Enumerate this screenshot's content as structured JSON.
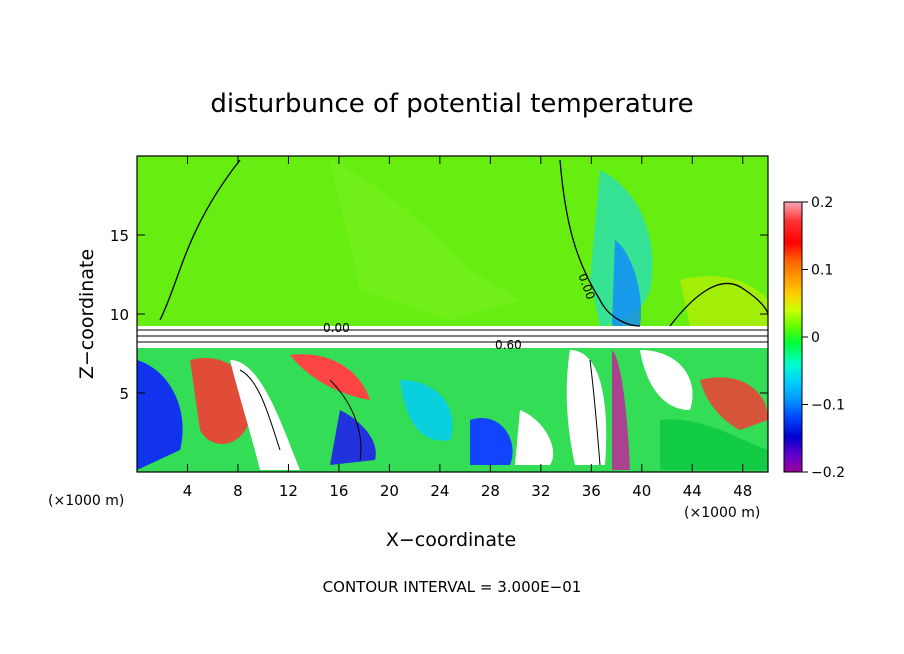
{
  "chart_data": {
    "type": "heatmap",
    "title": "disturbunce of potential temperature",
    "xlabel": "X−coordinate",
    "ylabel": "Z−coordinate",
    "x_unit_left": "(×1000 m)",
    "x_unit_right": "(×1000 m)",
    "xlim": [
      0,
      50
    ],
    "ylim": [
      0,
      20
    ],
    "xticks": [
      4,
      8,
      12,
      16,
      20,
      24,
      28,
      32,
      36,
      40,
      44,
      48
    ],
    "xtick_labels": [
      "4",
      "8",
      "12",
      "16",
      "20",
      "24",
      "28",
      "32",
      "36",
      "40",
      "44",
      "48"
    ],
    "yticks": [
      5,
      10,
      15
    ],
    "ytick_labels": [
      "5",
      "10",
      "15"
    ],
    "colorbar": {
      "range": [
        -0.2,
        0.2
      ],
      "ticks": [
        0.2,
        0.1,
        0,
        -0.1,
        -0.2
      ],
      "tick_labels": [
        "0.2",
        "0.1",
        "0",
        "−0.1",
        "−0.2"
      ],
      "colors": [
        "#f7a8b8",
        "#ff3333",
        "#ff0000",
        "#ff6600",
        "#ff9900",
        "#ffcc00",
        "#ccff00",
        "#66ff00",
        "#00ff33",
        "#00ffcc",
        "#00ccff",
        "#0099ff",
        "#0044ff",
        "#0000cc",
        "#6600cc",
        "#990099"
      ]
    },
    "contour_labels": [
      {
        "text": "0.00",
        "x": 13.8,
        "z": 9.0
      },
      {
        "text": "0.60",
        "x": 29.0,
        "z": 8.1
      },
      {
        "text": "0.00",
        "x": 35.5,
        "z": 12.0
      }
    ],
    "footer": "CONTOUR INTERVAL = 3.000E−01"
  },
  "colors": {
    "upper_field": "#66ee11",
    "lower_field": "#33dd55",
    "interface_band": "#ffffff",
    "frame": "#000000"
  }
}
